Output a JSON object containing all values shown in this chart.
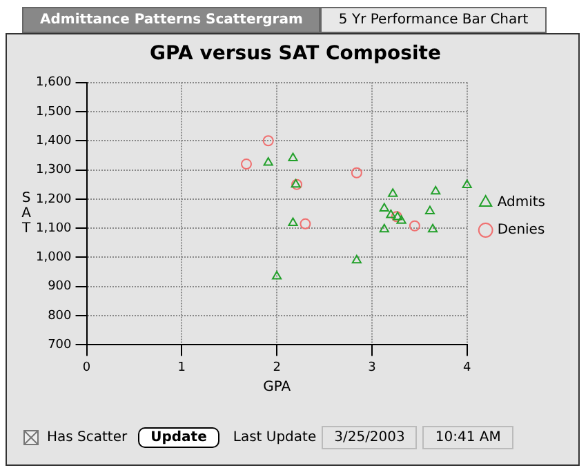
{
  "chart_data": {
    "type": "scatter",
    "title": "GPA versus SAT Composite",
    "xlabel": "GPA",
    "ylabel": "SAT",
    "xlim": [
      0,
      4
    ],
    "xticks": [
      0,
      1,
      2,
      3,
      4
    ],
    "ylim": [
      700,
      1600
    ],
    "yticks": [
      {
        "value": 700,
        "label": "700"
      },
      {
        "value": 800,
        "label": "800"
      },
      {
        "value": 900,
        "label": "900"
      },
      {
        "value": 1000,
        "label": "1,000"
      },
      {
        "value": 1100,
        "label": "1,100"
      },
      {
        "value": 1200,
        "label": "1,200"
      },
      {
        "value": 1300,
        "label": "1,300"
      },
      {
        "value": 1400,
        "label": "1,400"
      },
      {
        "value": 1500,
        "label": "1,500"
      },
      {
        "value": 1600,
        "label": "1,600"
      }
    ],
    "grid": true,
    "legend": "right",
    "series": [
      {
        "name": "Admits",
        "color": "#22a02a",
        "marker": "triangle",
        "x": [
          1.91,
          2.17,
          2.2,
          2.17,
          2.0,
          2.84,
          3.22,
          3.67,
          4.0,
          3.13,
          3.61,
          3.2,
          3.31,
          3.13,
          3.64,
          3.27
        ],
        "values": [
          1325,
          1340,
          1250,
          1118,
          935,
          990,
          1218,
          1226,
          1248,
          1168,
          1158,
          1145,
          1126,
          1096,
          1096,
          1138
        ]
      },
      {
        "name": "Denies",
        "color": "#f07070",
        "marker": "circle",
        "x": [
          1.91,
          1.68,
          2.84,
          2.3,
          3.26,
          3.45,
          2.21
        ],
        "values": [
          1400,
          1320,
          1290,
          1115,
          1140,
          1108,
          1250
        ]
      }
    ],
    "annotations": [
      "Admittance Patterns Scattergram",
      "5 Yr Performance Bar Chart",
      "Has Scatter",
      "Update",
      "Last Update",
      "3/25/2003",
      "10:41 AM"
    ]
  }
}
